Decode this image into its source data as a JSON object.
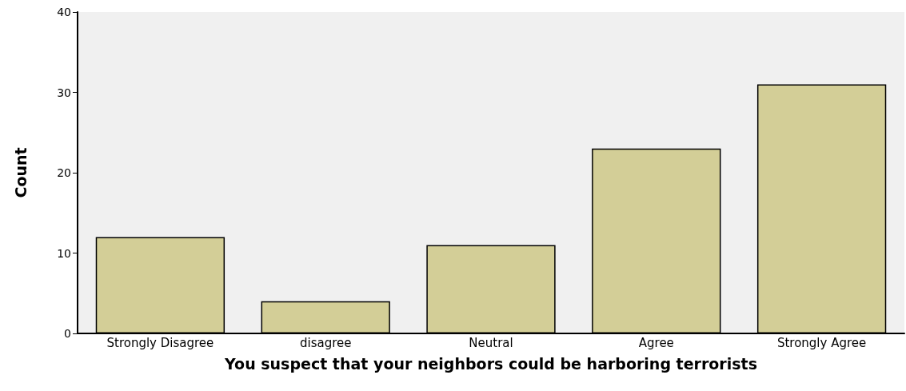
{
  "chart_data": {
    "type": "bar",
    "xlabel": "You suspect that your neighbors could be harboring terrorists",
    "ylabel": "Count",
    "categories": [
      "Strongly Disagree",
      "disagree",
      "Neutral",
      "Agree",
      "Strongly Agree"
    ],
    "values": [
      12,
      4,
      11,
      23,
      31
    ],
    "color": "#d3ce97",
    "ylim": [
      0,
      40
    ],
    "yticks": [
      0,
      10,
      20,
      30,
      40
    ],
    "grid": false
  }
}
